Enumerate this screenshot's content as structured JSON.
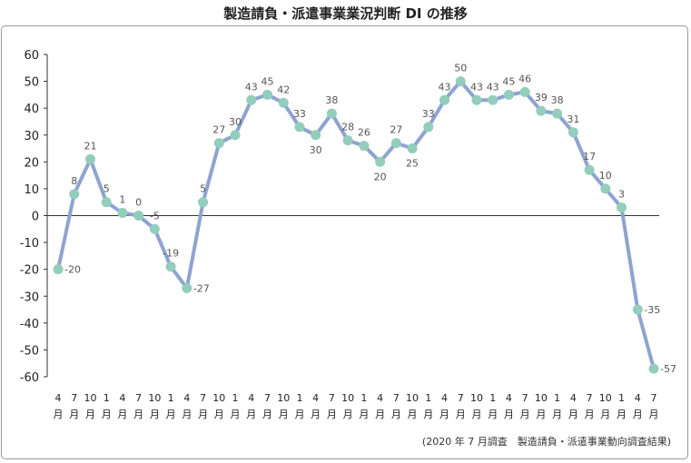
{
  "title": "製造請負・派遣事業業況判断 DI の推移",
  "note": "(2020 年 7 月調査　製造請負・派遣事業動向調査結果)",
  "colors": {
    "line": "#8fa3d1",
    "marker": "#93cdbb",
    "axis": "#333333",
    "label": "#555555"
  },
  "chart_data": {
    "type": "line",
    "title": "製造請負・派遣事業業況判断 DI の推移",
    "xlabel": "",
    "ylabel": "",
    "ylim": [
      -60,
      60
    ],
    "yticks": [
      60,
      50,
      40,
      30,
      20,
      10,
      0,
      -10,
      -20,
      -30,
      -40,
      -50,
      -60
    ],
    "grid": false,
    "month_suffix": "月",
    "categories": [
      "4",
      "7",
      "10",
      "1",
      "4",
      "7",
      "10",
      "1",
      "4",
      "7",
      "10",
      "1",
      "4",
      "7",
      "10",
      "1",
      "4",
      "7",
      "10",
      "1",
      "4",
      "7",
      "10",
      "1",
      "4",
      "7",
      "10",
      "1",
      "4",
      "7",
      "10",
      "1",
      "4",
      "7",
      "10",
      "1",
      "4",
      "7"
    ],
    "values": [
      -20,
      8,
      21,
      5,
      1,
      0,
      -5,
      -19,
      -27,
      5,
      27,
      30,
      43,
      45,
      42,
      33,
      30,
      38,
      28,
      26,
      20,
      27,
      25,
      33,
      43,
      50,
      43,
      43,
      45,
      46,
      39,
      38,
      31,
      17,
      10,
      3,
      -35,
      -57
    ],
    "value_labels": [
      "-20",
      "8",
      "21",
      "5",
      "1",
      "0",
      "-5",
      "-19",
      "-27",
      "5",
      "27",
      "30",
      "43",
      "45",
      "42",
      "33",
      "30",
      "38",
      "28",
      "26",
      "20",
      "27",
      "25",
      "33",
      "43",
      "50",
      "43",
      "43",
      "45",
      "46",
      "39",
      "38",
      "31",
      "17",
      "10",
      "3",
      "-35",
      "-57"
    ]
  }
}
